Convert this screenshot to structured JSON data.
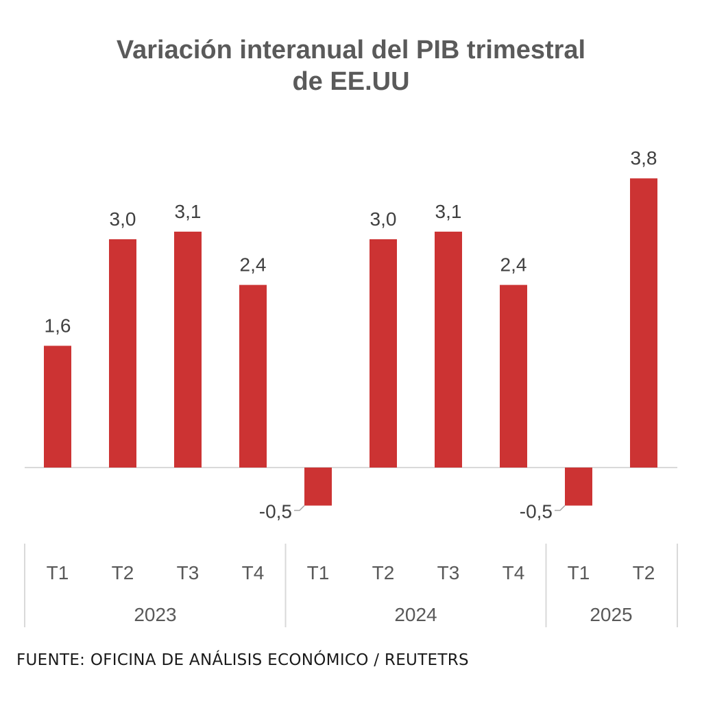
{
  "title_line1": "Variación interanual del PIB trimestral",
  "title_line2": "de EE.UU",
  "source": "FUENTE: OFICINA DE ANÁLISIS ECONÓMICO / REUTETRS",
  "colors": {
    "bar": "#cc3333",
    "text": "#3f3f3f",
    "title": "#5a5a5a",
    "axis_text": "#595959",
    "gridline": "#d9d9d9"
  },
  "chart_data": {
    "type": "bar",
    "title": "Variación interanual del PIB trimestral de EE.UU",
    "categories": [
      "T1",
      "T2",
      "T3",
      "T4",
      "T1",
      "T2",
      "T3",
      "T4",
      "T1",
      "T2"
    ],
    "groups": [
      {
        "label": "2023",
        "count": 4
      },
      {
        "label": "2024",
        "count": 4
      },
      {
        "label": "2025",
        "count": 2
      }
    ],
    "values": [
      1.6,
      3.0,
      3.1,
      2.4,
      -0.5,
      3.0,
      3.1,
      2.4,
      -0.5,
      3.8
    ],
    "value_labels": [
      "1,6",
      "3,0",
      "3,1",
      "2,4",
      "-0,5",
      "3,0",
      "3,1",
      "2,4",
      "-0,5",
      "3,8"
    ],
    "xlabel": "",
    "ylabel": "",
    "ylim": [
      -0.5,
      3.8
    ],
    "grid": false,
    "legend": "none"
  }
}
